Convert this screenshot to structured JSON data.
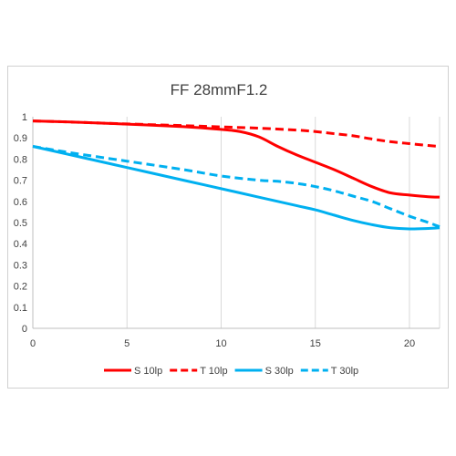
{
  "chart_data": {
    "type": "line",
    "title": "FF  28mmF1.2",
    "xlim": [
      0,
      21.6
    ],
    "ylim": [
      0,
      1
    ],
    "x_ticks": [
      "0",
      "5",
      "10",
      "15",
      "20"
    ],
    "y_ticks": [
      "0",
      "0.1",
      "0.2",
      "0.3",
      "0.4",
      "0.5",
      "0.6",
      "0.7",
      "0.8",
      "0.9",
      "1"
    ],
    "grid": "vertical",
    "legend_position": "bottom",
    "series": [
      {
        "name": "S 10lp",
        "color": "#ff0000",
        "dash": false,
        "x": [
          0,
          2,
          5,
          8,
          10,
          11,
          12,
          13,
          14,
          15,
          16,
          17,
          18,
          19,
          20,
          21,
          21.6
        ],
        "y": [
          0.98,
          0.975,
          0.965,
          0.953,
          0.94,
          0.93,
          0.905,
          0.86,
          0.82,
          0.785,
          0.75,
          0.71,
          0.67,
          0.64,
          0.63,
          0.622,
          0.62
        ]
      },
      {
        "name": "T 10lp",
        "color": "#ff0000",
        "dash": true,
        "x": [
          0,
          2,
          5,
          8,
          10,
          12,
          14,
          15,
          16,
          17,
          18,
          19,
          20,
          21,
          21.6
        ],
        "y": [
          0.98,
          0.975,
          0.966,
          0.958,
          0.952,
          0.946,
          0.937,
          0.93,
          0.92,
          0.91,
          0.895,
          0.882,
          0.873,
          0.864,
          0.86
        ]
      },
      {
        "name": "S 30lp",
        "color": "#00b0f0",
        "dash": false,
        "x": [
          0,
          2,
          5,
          8,
          10,
          12,
          14,
          15,
          16,
          17,
          18,
          19,
          20,
          21,
          21.6
        ],
        "y": [
          0.86,
          0.82,
          0.76,
          0.7,
          0.66,
          0.62,
          0.58,
          0.56,
          0.535,
          0.51,
          0.49,
          0.475,
          0.47,
          0.472,
          0.475
        ]
      },
      {
        "name": "T 30lp",
        "color": "#00b0f0",
        "dash": true,
        "x": [
          0,
          2,
          5,
          8,
          10,
          12,
          13,
          14,
          15,
          16,
          17,
          18,
          19,
          20,
          21,
          21.6
        ],
        "y": [
          0.86,
          0.83,
          0.79,
          0.75,
          0.72,
          0.7,
          0.695,
          0.685,
          0.67,
          0.65,
          0.625,
          0.6,
          0.565,
          0.53,
          0.5,
          0.48
        ]
      }
    ]
  }
}
